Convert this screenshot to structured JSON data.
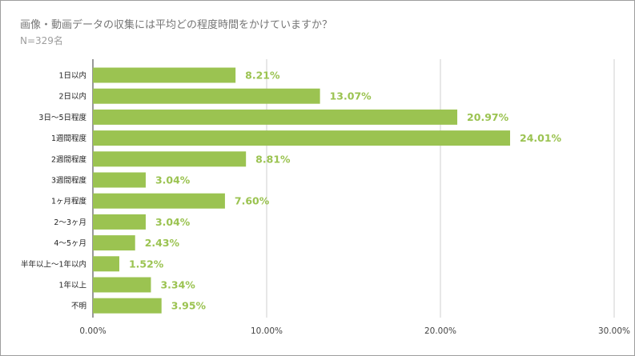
{
  "title": "画像・動画データの収集には平均どの程度時間をかけていますか？",
  "subtitle": "N=329名",
  "chart_data": {
    "type": "bar",
    "orientation": "horizontal",
    "categories": [
      "1日以内",
      "2日以内",
      "3日〜5日程度",
      "1週間程度",
      "2週間程度",
      "3週間程度",
      "1ヶ月程度",
      "2〜3ヶ月",
      "4〜5ヶ月",
      "半年以上〜1年以内",
      "1年以上",
      "不明"
    ],
    "values": [
      8.21,
      13.07,
      20.97,
      24.01,
      8.81,
      3.04,
      7.6,
      3.04,
      2.43,
      1.52,
      3.34,
      3.95
    ],
    "value_labels": [
      "8.21%",
      "13.07%",
      "20.97%",
      "24.01%",
      "8.81%",
      "3.04%",
      "7.60%",
      "3.04%",
      "2.43%",
      "1.52%",
      "3.34%",
      "3.95%"
    ],
    "xlim": [
      0,
      30
    ],
    "x_ticks": [
      0,
      10,
      20,
      30
    ],
    "x_tick_labels": [
      "0.00%",
      "10.00%",
      "20.00%",
      "30.00%"
    ],
    "grid": true,
    "legend": "none",
    "bar_color": "#9bc351",
    "label_color": "#9bc351"
  }
}
